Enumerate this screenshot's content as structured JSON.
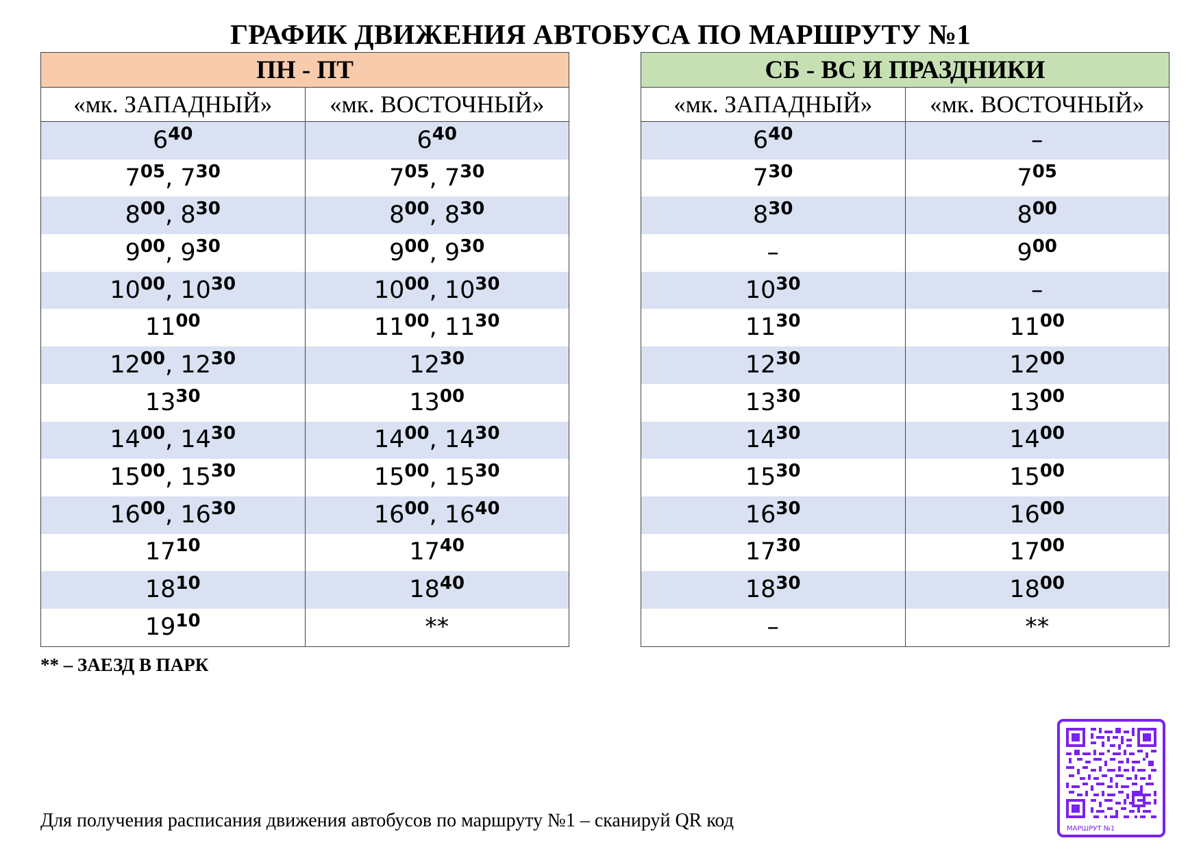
{
  "title": "ГРАФИК ДВИЖЕНИЯ АВТОБУСА ПО МАРШРУТУ №1",
  "weekday": {
    "header": "ПН - ПТ",
    "stops": [
      "«мк. ЗАПАДНЫЙ»",
      "«мк. ВОСТОЧНЫЙ»"
    ],
    "rows": [
      [
        "6:40",
        "6:40"
      ],
      [
        "7:05, 7:30",
        "7:05, 7:30"
      ],
      [
        "8:00, 8:30",
        "8:00, 8:30"
      ],
      [
        "9:00, 9:30",
        "9:00, 9:30"
      ],
      [
        "10:00, 10:30",
        "10:00, 10:30"
      ],
      [
        "11:00",
        "11:00, 11:30"
      ],
      [
        "12:00, 12:30",
        "12:30"
      ],
      [
        "13:30",
        "13:00"
      ],
      [
        "14:00, 14:30",
        "14:00, 14:30"
      ],
      [
        "15:00, 15:30",
        "15:00, 15:30"
      ],
      [
        "16:00, 16:30",
        "16:00, 16:40"
      ],
      [
        "17:10",
        "17:40"
      ],
      [
        "18:10",
        "18:40"
      ],
      [
        "19:10",
        "**"
      ]
    ]
  },
  "weekend": {
    "header": "СБ - ВС И ПРАЗДНИКИ",
    "stops": [
      "«мк. ЗАПАДНЫЙ»",
      "«мк. ВОСТОЧНЫЙ»"
    ],
    "rows": [
      [
        "6:40",
        "–"
      ],
      [
        "7:30",
        "7:05"
      ],
      [
        "8:30",
        "8:00"
      ],
      [
        "–",
        "9:00"
      ],
      [
        "10:30",
        "–"
      ],
      [
        "11:30",
        "11:00"
      ],
      [
        "12:30",
        "12:00"
      ],
      [
        "13:30",
        "13:00"
      ],
      [
        "14:30",
        "14:00"
      ],
      [
        "15:30",
        "15:00"
      ],
      [
        "16:30",
        "16:00"
      ],
      [
        "17:30",
        "17:00"
      ],
      [
        "18:30",
        "18:00"
      ],
      [
        "–",
        "**"
      ]
    ]
  },
  "footnote": "** – ЗАЕЗД В ПАРК",
  "qr_note": "Для получения расписания движения автобусов по маршруту №1 – сканируй QR код",
  "qr_label": "МАРШРУТ №1",
  "colors": {
    "weekday_header": "#f8cbad",
    "weekend_header": "#c6e0b4",
    "row_band": "#d9e1f2",
    "qr_accent": "#7a22f0"
  }
}
